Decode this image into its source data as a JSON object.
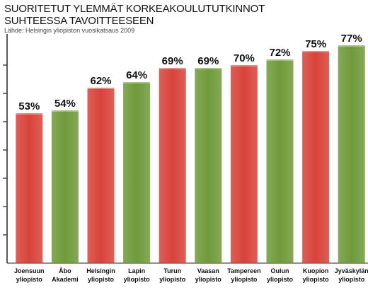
{
  "header": {
    "title_line1": "SUORITETUT YLEMMÄT KORKEAKOULUTUTKINNOT",
    "title_line2": "SUHTEESSA TAVOITTEESEEN",
    "source": "Lähde: Helsingin yliopiston vuosikatsaus 2009"
  },
  "colors": {
    "red": "#d8433a",
    "green": "#6f9a3a",
    "axis": "#222222",
    "grid_tick": "#222222"
  },
  "chart_data": {
    "type": "bar",
    "title": "SUORITETUT YLEMMÄT KORKEAKOULUTUTKINNOT SUHTEESSA TAVOITTEESEEN",
    "xlabel": "",
    "ylabel": "",
    "ylim": [
      0,
      80
    ],
    "categories": [
      [
        "Joensuun",
        "yliopisto"
      ],
      [
        "Åbo",
        "Akademi"
      ],
      [
        "Helsingin",
        "yliopisto"
      ],
      [
        "Lapin",
        "yliopisto"
      ],
      [
        "Turun",
        "yliopisto"
      ],
      [
        "Vaasan",
        "yliopisto"
      ],
      [
        "Tampereen",
        "yliopisto"
      ],
      [
        "Oulun",
        "yliopisto"
      ],
      [
        "Kuopion",
        "yliopisto"
      ],
      [
        "Jyväskylän",
        "yliopisto"
      ]
    ],
    "values": [
      53,
      54,
      62,
      64,
      69,
      69,
      70,
      72,
      75,
      77
    ],
    "labels": [
      "53%",
      "54%",
      "62%",
      "64%",
      "69%",
      "69%",
      "70%",
      "72%",
      "75%",
      "77%"
    ],
    "bar_colors": [
      "red",
      "green",
      "red",
      "green",
      "red",
      "green",
      "red",
      "green",
      "red",
      "green"
    ],
    "grid": false,
    "y_ticks": [
      10,
      20,
      30,
      40,
      50,
      60,
      70
    ]
  }
}
